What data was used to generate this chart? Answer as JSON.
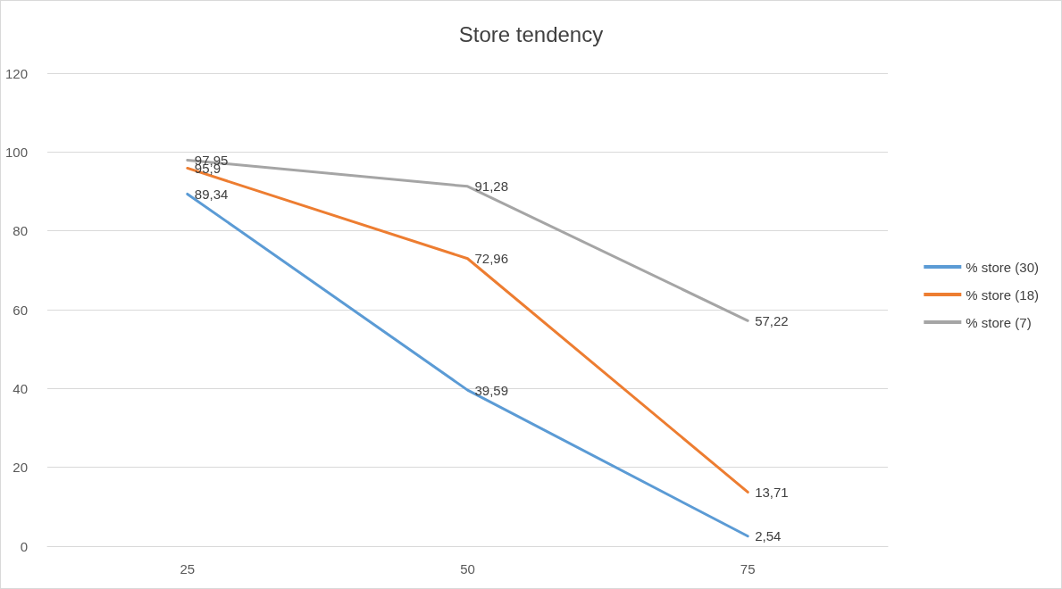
{
  "chart_data": {
    "type": "line",
    "title": "Store tendency",
    "categories": [
      "25",
      "50",
      "75"
    ],
    "series": [
      {
        "name": "% store (30)",
        "color": "#5b9bd5",
        "values": [
          89.34,
          39.59,
          2.54
        ],
        "value_labels": [
          "89,34",
          "39,59",
          "2,54"
        ]
      },
      {
        "name": "% store (18)",
        "color": "#ed7d31",
        "values": [
          95.9,
          72.96,
          13.71
        ],
        "value_labels": [
          "95,9",
          "72,96",
          "13,71"
        ]
      },
      {
        "name": "% store (7)",
        "color": "#a5a5a5",
        "values": [
          97.95,
          91.28,
          57.22
        ],
        "value_labels": [
          "97,95",
          "91,28",
          "57,22"
        ]
      }
    ],
    "ylim": [
      0,
      120
    ],
    "yticks": [
      0,
      20,
      40,
      60,
      80,
      100,
      120
    ],
    "grid": "y",
    "legend": "right",
    "marker": "none",
    "line_style": "solid"
  }
}
